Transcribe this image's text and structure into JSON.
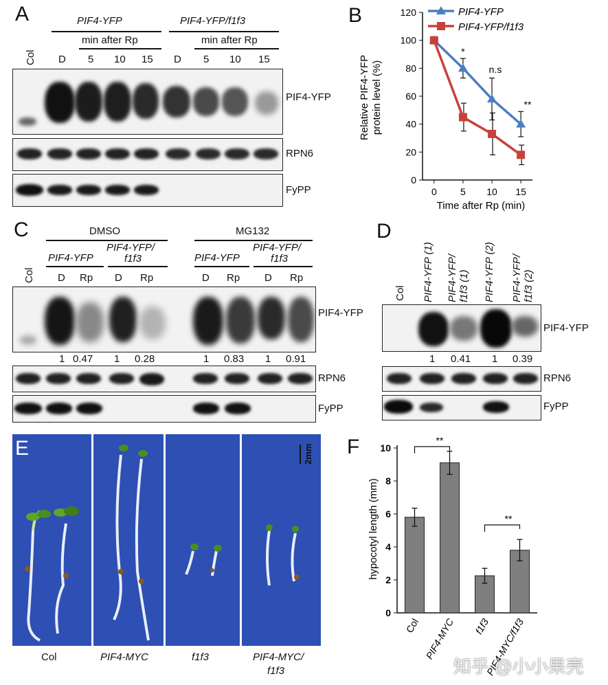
{
  "panels": {
    "A": {
      "label": "A",
      "group1": "PIF4-YFP",
      "group2": "PIF4-YFP/f1f3",
      "subheader": "min after Rp",
      "lanes": [
        "Col",
        "D",
        "5",
        "10",
        "15",
        "D",
        "5",
        "10",
        "15"
      ],
      "row_labels": [
        "PIF4-YFP",
        "RPN6",
        "FyPP"
      ]
    },
    "B": {
      "label": "B",
      "legend": [
        "PIF4-YFP",
        "PIF4-YFP/f1f3"
      ],
      "ylabel_line1": "Relative PIF4-YFP",
      "ylabel_line2": "protein level (%)",
      "xlabel": "Time after Rp (min)",
      "sig": [
        "*",
        "n.s",
        "**"
      ]
    },
    "C": {
      "label": "C",
      "treat1": "DMSO",
      "treat2": "MG132",
      "geno1": "PIF4-YFP",
      "geno2_line1": "PIF4-YFP/",
      "geno2_line2": "f1f3",
      "lanes": [
        "Col",
        "D",
        "Rp",
        "D",
        "Rp",
        "D",
        "Rp",
        "D",
        "Rp"
      ],
      "quant": [
        "1",
        "0.47",
        "1",
        "0.28",
        "1",
        "0.83",
        "1",
        "0.91"
      ],
      "row_labels": [
        "PIF4-YFP",
        "RPN6",
        "FyPP"
      ]
    },
    "D": {
      "label": "D",
      "lanes": [
        "Col",
        "PIF4-YFP (1)",
        "PIF4-YFP/",
        "f1f3 (1)",
        "PIF4-YFP (2)",
        "PIF4-YFP/",
        "f1f3 (2)"
      ],
      "quant": [
        "1",
        "0.41",
        "1",
        "0.39"
      ],
      "row_labels": [
        "PIF4-YFP",
        "RPN6",
        "FyPP"
      ]
    },
    "E": {
      "label": "E",
      "scale": "2mm",
      "genotypes": [
        "Col",
        "PIF4-MYC",
        "f1f3",
        "PIF4-MYC/",
        "f1f3"
      ]
    },
    "F": {
      "label": "F",
      "sig": [
        "**",
        "**"
      ]
    }
  },
  "chart_data": [
    {
      "type": "line",
      "panel": "B",
      "x": [
        0,
        5,
        10,
        15
      ],
      "xlabel": "Time after Rp (min)",
      "ylabel": "Relative PIF4-YFP protein level (%)",
      "ylim": [
        0,
        120
      ],
      "yticks": [
        0,
        20,
        40,
        60,
        80,
        100,
        120
      ],
      "series": [
        {
          "name": "PIF4-YFP",
          "color": "#4a7fc1",
          "marker": "triangle",
          "values": [
            100,
            80,
            58,
            40
          ],
          "errors": [
            0,
            7,
            15,
            9
          ]
        },
        {
          "name": "PIF4-YFP/f1f3",
          "color": "#c9403a",
          "marker": "square",
          "values": [
            100,
            45,
            33,
            18
          ],
          "errors": [
            0,
            10,
            15,
            7
          ]
        }
      ],
      "grid": false,
      "legend_position": "top"
    },
    {
      "type": "bar",
      "panel": "F",
      "categories": [
        "Col",
        "PIF4-MYC",
        "f1f3",
        "PIF4-MYC/f1f3"
      ],
      "values": [
        5.8,
        9.1,
        2.25,
        3.8
      ],
      "errors": [
        0.55,
        0.7,
        0.45,
        0.65
      ],
      "ylabel": "hypocotyl length (mm)",
      "ylim": [
        0,
        10
      ],
      "yticks": [
        0,
        2,
        4,
        6,
        8,
        10
      ],
      "bar_color": "#7f7f7f",
      "grid": false
    }
  ],
  "watermark": "知乎 @小小果壳"
}
